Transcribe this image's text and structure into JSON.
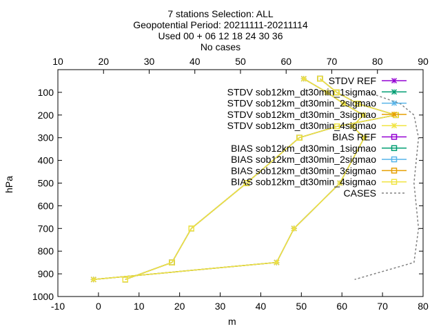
{
  "header": {
    "line1": "7 stations Selection: ALL",
    "line2": "Geopotential  Period: 20211111-20211114",
    "line3": "Used 00 + 06 12 18 24 30 36",
    "line4": "No cases"
  },
  "chart_data": {
    "type": "line",
    "xlabel": "m",
    "ylabel": "hPa",
    "xlim": [
      -10,
      80
    ],
    "ylim": [
      1000,
      0
    ],
    "x2lim": [
      10,
      90
    ],
    "xticks": [
      -10,
      0,
      10,
      20,
      30,
      40,
      50,
      60,
      70,
      80
    ],
    "x2ticks": [
      10,
      20,
      30,
      40,
      50,
      60,
      70,
      80,
      90
    ],
    "yticks": [
      100,
      200,
      300,
      400,
      500,
      600,
      700,
      800,
      900,
      1000
    ],
    "grid": false,
    "legend_position": "top-right",
    "series": [
      {
        "name": "STDV REF",
        "marker": "x",
        "dash": false,
        "color": "#9400d3",
        "axis": "x",
        "points": [
          [
            50.6,
            40
          ],
          [
            56.3,
            100
          ],
          [
            60.4,
            150
          ],
          [
            65.3,
            200
          ],
          [
            62.6,
            250
          ],
          [
            65.5,
            300
          ],
          [
            59.5,
            500
          ],
          [
            48.2,
            700
          ],
          [
            43.9,
            850
          ],
          [
            -1.2,
            925
          ]
        ]
      },
      {
        "name": "STDV sob12km_dt30min_1sigmao",
        "marker": "x",
        "dash": false,
        "color": "#009e73",
        "axis": "x",
        "points": [
          [
            50.6,
            40
          ],
          [
            56.3,
            100
          ],
          [
            60.4,
            150
          ],
          [
            65.3,
            200
          ],
          [
            62.6,
            250
          ],
          [
            65.5,
            300
          ],
          [
            59.5,
            500
          ],
          [
            48.2,
            700
          ],
          [
            43.9,
            850
          ],
          [
            -1.2,
            925
          ]
        ]
      },
      {
        "name": "STDV sob12km_dt30min_2sigmao",
        "marker": "x",
        "dash": false,
        "color": "#56b4e9",
        "axis": "x",
        "points": [
          [
            50.6,
            40
          ],
          [
            56.3,
            100
          ],
          [
            60.4,
            150
          ],
          [
            65.3,
            200
          ],
          [
            62.6,
            250
          ],
          [
            65.5,
            300
          ],
          [
            59.5,
            500
          ],
          [
            48.2,
            700
          ],
          [
            43.9,
            850
          ],
          [
            -1.2,
            925
          ]
        ]
      },
      {
        "name": "STDV sob12km_dt30min_3sigmao",
        "marker": "x",
        "dash": false,
        "color": "#e69f00",
        "axis": "x",
        "points": [
          [
            50.6,
            40
          ],
          [
            56.3,
            100
          ],
          [
            60.4,
            150
          ],
          [
            65.3,
            200
          ],
          [
            62.6,
            250
          ],
          [
            65.5,
            300
          ],
          [
            59.5,
            500
          ],
          [
            48.2,
            700
          ],
          [
            43.9,
            850
          ],
          [
            -1.2,
            925
          ]
        ]
      },
      {
        "name": "STDV sob12km_dt30min_4sigmao",
        "marker": "x",
        "dash": false,
        "color": "#f0e442",
        "axis": "x",
        "points": [
          [
            50.6,
            40
          ],
          [
            56.3,
            100
          ],
          [
            60.4,
            150
          ],
          [
            65.3,
            200
          ],
          [
            62.6,
            250
          ],
          [
            65.5,
            300
          ],
          [
            59.5,
            500
          ],
          [
            48.2,
            700
          ],
          [
            43.9,
            850
          ],
          [
            -1.2,
            925
          ]
        ]
      },
      {
        "name": "BIAS REF",
        "marker": "square",
        "dash": false,
        "color": "#9400d3",
        "axis": "x",
        "points": [
          [
            54.6,
            40
          ],
          [
            58.7,
            100
          ],
          [
            63.9,
            150
          ],
          [
            73.3,
            200
          ],
          [
            58.8,
            250
          ],
          [
            49.5,
            300
          ],
          [
            36.5,
            500
          ],
          [
            22.9,
            700
          ],
          [
            18.1,
            850
          ],
          [
            6.6,
            925
          ]
        ]
      },
      {
        "name": "BIAS sob12km_dt30min_1sigmao",
        "marker": "square",
        "dash": false,
        "color": "#009e73",
        "axis": "x",
        "points": [
          [
            54.6,
            40
          ],
          [
            58.7,
            100
          ],
          [
            63.9,
            150
          ],
          [
            73.3,
            200
          ],
          [
            58.8,
            250
          ],
          [
            49.5,
            300
          ],
          [
            36.5,
            500
          ],
          [
            22.9,
            700
          ],
          [
            18.1,
            850
          ],
          [
            6.6,
            925
          ]
        ]
      },
      {
        "name": "BIAS sob12km_dt30min_2sigmao",
        "marker": "square",
        "dash": false,
        "color": "#56b4e9",
        "axis": "x",
        "points": [
          [
            54.6,
            40
          ],
          [
            58.7,
            100
          ],
          [
            63.9,
            150
          ],
          [
            73.3,
            200
          ],
          [
            58.8,
            250
          ],
          [
            49.5,
            300
          ],
          [
            36.5,
            500
          ],
          [
            22.9,
            700
          ],
          [
            18.1,
            850
          ],
          [
            6.6,
            925
          ]
        ]
      },
      {
        "name": "BIAS sob12km_dt30min_3sigmao",
        "marker": "square",
        "dash": false,
        "color": "#e69f00",
        "axis": "x",
        "points": [
          [
            54.6,
            40
          ],
          [
            58.7,
            100
          ],
          [
            63.9,
            150
          ],
          [
            73.3,
            200
          ],
          [
            58.8,
            250
          ],
          [
            49.5,
            300
          ],
          [
            36.5,
            500
          ],
          [
            22.9,
            700
          ],
          [
            18.1,
            850
          ],
          [
            6.6,
            925
          ]
        ]
      },
      {
        "name": "BIAS sob12km_dt30min_4sigmao",
        "marker": "square",
        "dash": false,
        "color": "#f0e442",
        "axis": "x",
        "points": [
          [
            54.6,
            40
          ],
          [
            58.7,
            100
          ],
          [
            63.9,
            150
          ],
          [
            73.3,
            200
          ],
          [
            58.8,
            250
          ],
          [
            49.5,
            300
          ],
          [
            36.5,
            500
          ],
          [
            22.9,
            700
          ],
          [
            18.1,
            850
          ],
          [
            6.6,
            925
          ]
        ]
      },
      {
        "name": "CASES",
        "marker": "none",
        "dash": true,
        "color": "#808080",
        "axis": "x2",
        "points": [
          [
            78,
            100
          ],
          [
            85,
            150
          ],
          [
            88,
            200
          ],
          [
            89,
            300
          ],
          [
            88,
            500
          ],
          [
            88.5,
            600
          ],
          [
            89,
            700
          ],
          [
            88,
            850
          ],
          [
            75,
            925
          ]
        ]
      }
    ]
  }
}
